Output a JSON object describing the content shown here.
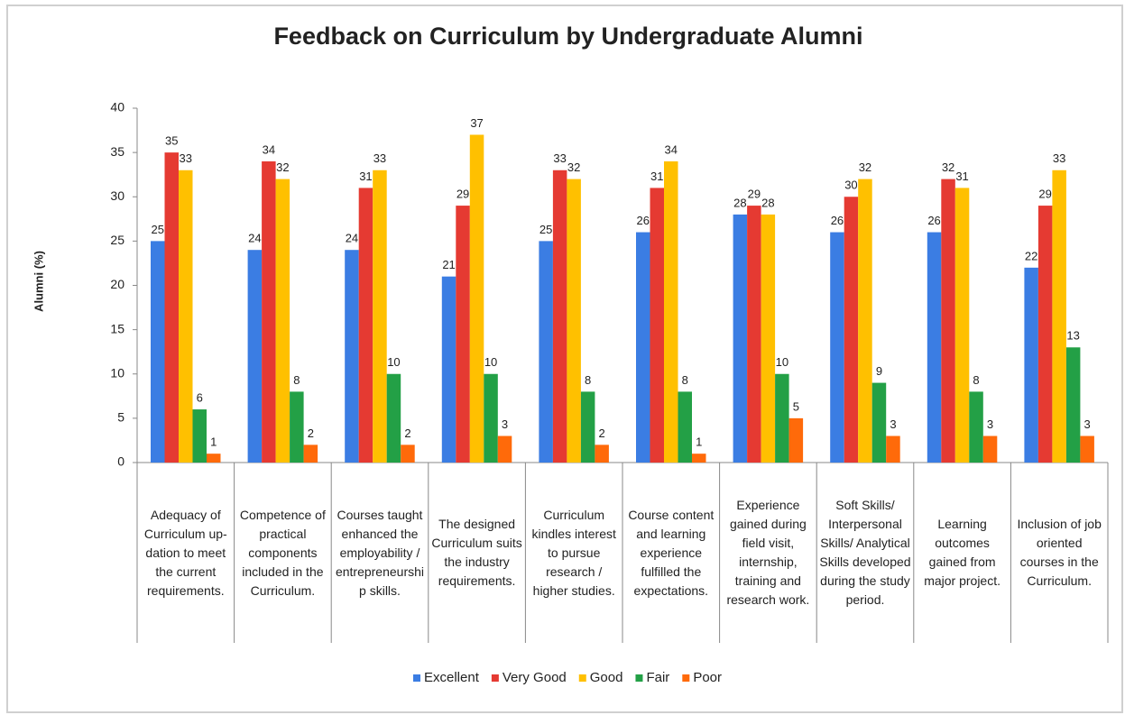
{
  "chart_data": {
    "type": "bar",
    "title": "Feedback on Curriculum by Undergraduate Alumni",
    "y_label": "Alumni (%)",
    "categories": [
      "Adequacy of Curriculum up-dation to meet the current requirements.",
      "Competence of practical components included in the Curriculum.",
      "Courses taught enhanced the employability / entrepreneurship skills.",
      "The designed Curriculum suits the industry requirements.",
      "Curriculum kindles interest to pursue research / higher studies.",
      "Course content and learning experience fulfilled the expectations.",
      "Experience gained during field visit, internship, training and research work.",
      "Soft Skills/ Interpersonal Skills/ Analytical Skills developed during the study period.",
      "Learning outcomes gained from major project.",
      "Inclusion of job oriented courses in the Curriculum."
    ],
    "series": [
      {
        "name": "Excellent",
        "color": "#3b7de3",
        "values": [
          25,
          24,
          24,
          21,
          25,
          26,
          28,
          26,
          26,
          22
        ]
      },
      {
        "name": "Very Good",
        "color": "#e53a32",
        "values": [
          35,
          34,
          31,
          29,
          33,
          31,
          29,
          30,
          32,
          29
        ]
      },
      {
        "name": "Good",
        "color": "#ffc000",
        "values": [
          33,
          32,
          33,
          37,
          32,
          34,
          28,
          32,
          31,
          33
        ]
      },
      {
        "name": "Fair",
        "color": "#23a046",
        "values": [
          6,
          8,
          10,
          10,
          8,
          8,
          10,
          9,
          8,
          13
        ]
      },
      {
        "name": "Poor",
        "color": "#ff6a0a",
        "values": [
          1,
          2,
          2,
          3,
          2,
          1,
          5,
          3,
          3,
          3
        ]
      }
    ],
    "ylim": [
      0,
      40
    ],
    "yticks": [
      0,
      5,
      10,
      15,
      20,
      25,
      30,
      35,
      40
    ],
    "legend": "bottom"
  }
}
